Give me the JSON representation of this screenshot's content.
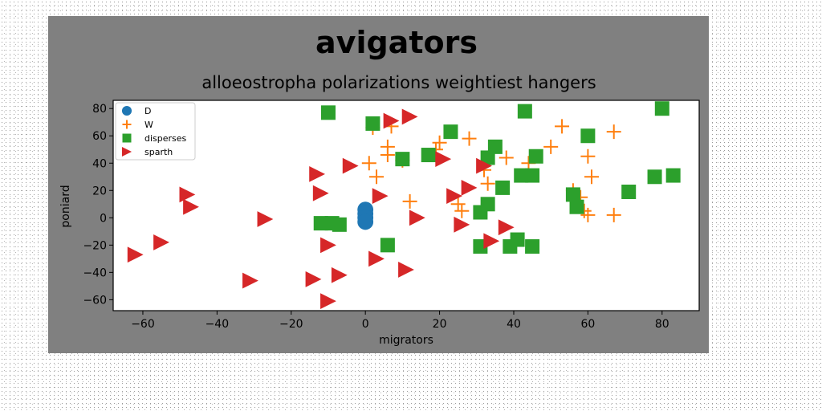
{
  "chart_data": {
    "type": "scatter",
    "title": "avigators",
    "subtitle": "alloeostropha polarizations weightiest hangers",
    "xlabel": "migrators",
    "ylabel": "poniard",
    "xlim": [
      -68,
      90
    ],
    "ylim": [
      -68,
      86
    ],
    "xticks": [
      -60,
      -40,
      -20,
      0,
      20,
      40,
      60,
      80
    ],
    "yticks": [
      -60,
      -40,
      -20,
      0,
      20,
      40,
      60,
      80
    ],
    "x_tick_labels": [
      "−60",
      "−40",
      "−20",
      "0",
      "20",
      "40",
      "60",
      "80"
    ],
    "y_tick_labels": [
      "−60",
      "−40",
      "−20",
      "0",
      "20",
      "40",
      "60",
      "80"
    ],
    "grid": false,
    "legend_position": "top-left",
    "series": [
      {
        "name": "D",
        "marker": "circle",
        "color": "#1f77b4",
        "points": [
          [
            0,
            6
          ],
          [
            0,
            3
          ],
          [
            0,
            0
          ],
          [
            0,
            -3
          ]
        ]
      },
      {
        "name": "W",
        "marker": "plus",
        "color": "#ff7f0e",
        "points": [
          [
            2,
            66
          ],
          [
            7,
            67
          ],
          [
            6,
            52
          ],
          [
            6,
            46
          ],
          [
            10,
            42
          ],
          [
            12,
            12
          ],
          [
            1,
            40
          ],
          [
            3,
            30
          ],
          [
            20,
            55
          ],
          [
            19,
            50
          ],
          [
            28,
            58
          ],
          [
            32,
            35
          ],
          [
            33,
            25
          ],
          [
            25,
            10
          ],
          [
            26,
            5
          ],
          [
            38,
            44
          ],
          [
            44,
            40
          ],
          [
            50,
            52
          ],
          [
            53,
            67
          ],
          [
            58,
            15
          ],
          [
            56,
            20
          ],
          [
            59,
            5
          ],
          [
            60,
            2
          ],
          [
            60,
            45
          ],
          [
            61,
            30
          ],
          [
            67,
            63
          ],
          [
            67,
            2
          ]
        ]
      },
      {
        "name": "disperses",
        "marker": "square",
        "color": "#2ca02c",
        "points": [
          [
            -10,
            77
          ],
          [
            2,
            69
          ],
          [
            10,
            43
          ],
          [
            17,
            46
          ],
          [
            23,
            63
          ],
          [
            33,
            44
          ],
          [
            35,
            52
          ],
          [
            43,
            78
          ],
          [
            60,
            60
          ],
          [
            80,
            80
          ],
          [
            37,
            22
          ],
          [
            42,
            31
          ],
          [
            45,
            31
          ],
          [
            46,
            45
          ],
          [
            56,
            17
          ],
          [
            57,
            8
          ],
          [
            71,
            19
          ],
          [
            78,
            30
          ],
          [
            83,
            31
          ],
          [
            -12,
            -4
          ],
          [
            -9,
            -4
          ],
          [
            -7,
            -5
          ],
          [
            31,
            4
          ],
          [
            33,
            10
          ],
          [
            31,
            -21
          ],
          [
            39,
            -21
          ],
          [
            41,
            -16
          ],
          [
            45,
            -21
          ],
          [
            6,
            -20
          ]
        ]
      },
      {
        "name": "sparth",
        "marker": "triangle-right",
        "color": "#d62728",
        "points": [
          [
            7,
            71
          ],
          [
            12,
            74
          ],
          [
            -13,
            32
          ],
          [
            -12,
            18
          ],
          [
            -4,
            38
          ],
          [
            4,
            16
          ],
          [
            14,
            0
          ],
          [
            21,
            43
          ],
          [
            24,
            16
          ],
          [
            28,
            22
          ],
          [
            32,
            38
          ],
          [
            26,
            -5
          ],
          [
            38,
            -7
          ],
          [
            34,
            -17
          ],
          [
            -48,
            17
          ],
          [
            -47,
            8
          ],
          [
            -27,
            -1
          ],
          [
            -55,
            -18
          ],
          [
            -62,
            -27
          ],
          [
            -31,
            -46
          ],
          [
            -14,
            -45
          ],
          [
            -7,
            -42
          ],
          [
            -10,
            -20
          ],
          [
            -10,
            -61
          ],
          [
            3,
            -30
          ],
          [
            11,
            -38
          ]
        ]
      }
    ]
  }
}
